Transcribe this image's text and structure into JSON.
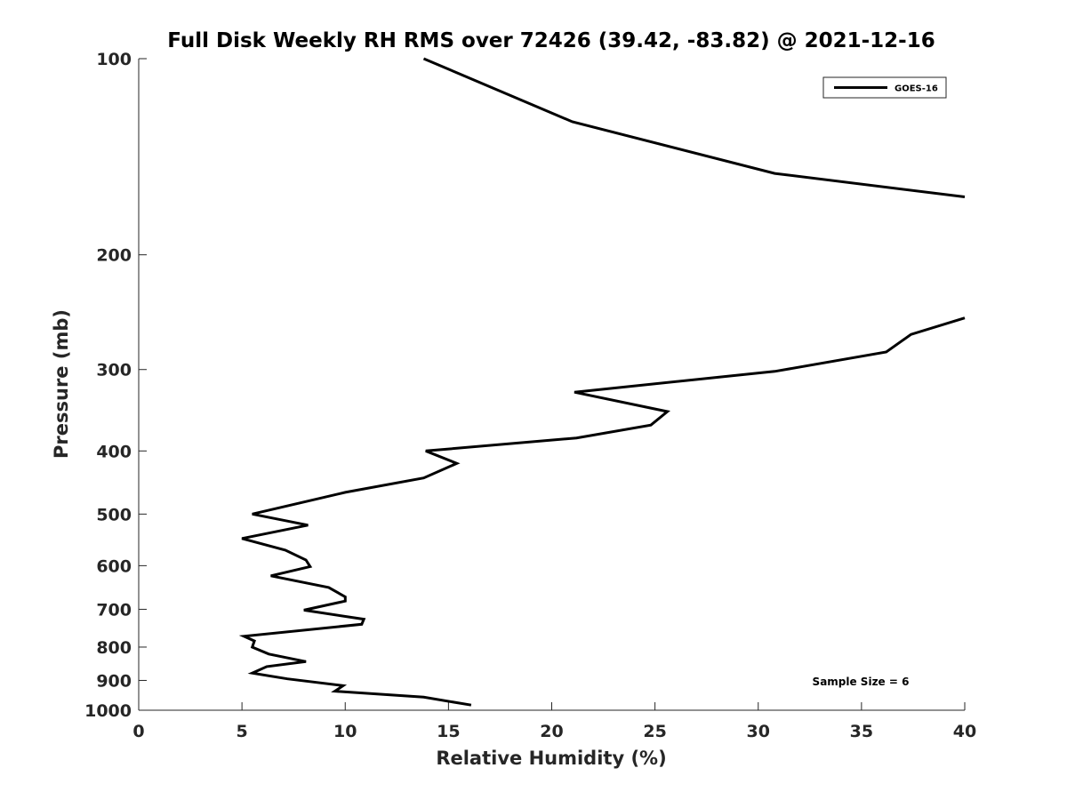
{
  "chart_data": {
    "type": "line",
    "title": "Full Disk Weekly RH RMS over 72426 (39.42, -83.82) @ 2021-12-16",
    "xlabel": "Relative Humidity (%)",
    "ylabel": "Pressure (mb)",
    "xlim": [
      0,
      40
    ],
    "ylim": [
      100,
      1000
    ],
    "y_scale": "log",
    "y_reversed": true,
    "x_ticks": [
      0,
      5,
      10,
      15,
      20,
      25,
      30,
      35,
      40
    ],
    "y_ticks": [
      100,
      200,
      300,
      400,
      500,
      600,
      700,
      800,
      900,
      1000
    ],
    "grid": false,
    "legend_position": "top-right",
    "annotation": "Sample Size = 6",
    "series": [
      {
        "name": "GOES-16",
        "color": "#000000",
        "segments": [
          {
            "x": [
              13.8,
              21.0,
              30.8,
              40.0
            ],
            "y": [
              100,
              125,
              150,
              163
            ]
          },
          {
            "x": [
              40.0,
              37.4,
              36.2,
              30.8,
              21.1,
              25.6,
              24.8,
              21.2,
              13.9,
              15.4,
              13.8,
              10.0,
              7.9,
              5.5,
              8.2,
              5.0,
              7.1,
              8.1,
              8.3,
              6.4,
              9.2,
              10.0,
              10.0,
              8.0,
              10.9,
              10.8,
              5.1,
              5.6,
              5.5,
              6.3,
              8.1,
              6.2,
              5.5,
              7.2,
              9.9,
              9.5,
              13.8,
              16.1
            ],
            "y": [
              250,
              265,
              282,
              302,
              325,
              348,
              365,
              382,
              400,
              418,
              440,
              463,
              480,
              500,
              520,
              545,
              568,
              588,
              602,
              622,
              648,
              670,
              680,
              702,
              725,
              738,
              770,
              783,
              800,
              820,
              842,
              857,
              877,
              895,
              917,
              935,
              955,
              982
            ]
          }
        ]
      }
    ]
  }
}
